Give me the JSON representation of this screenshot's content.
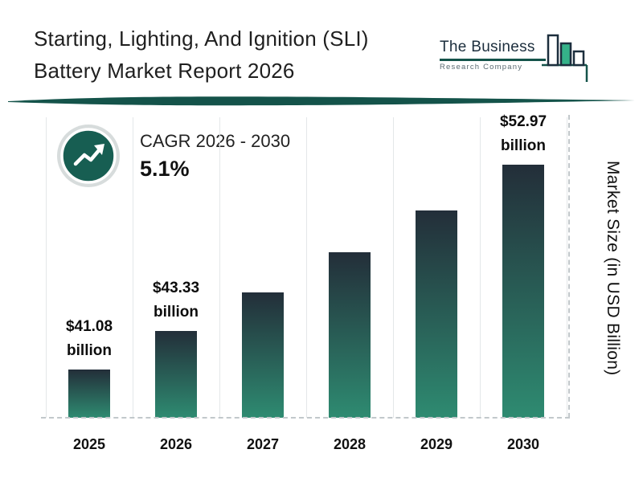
{
  "header": {
    "title_line1": "Starting, Lighting, And Ignition (SLI)",
    "title_line2": "Battery Market Report 2026",
    "logo": {
      "line1": "The Business",
      "line2": "Research Company"
    }
  },
  "cagr": {
    "label": "CAGR 2026 - 2030",
    "value": "5.1%"
  },
  "chart_data": {
    "type": "bar",
    "title": "Starting, Lighting, And Ignition (SLI) Battery Market Report 2026",
    "categories": [
      "2025",
      "2026",
      "2027",
      "2028",
      "2029",
      "2030"
    ],
    "values": [
      41.08,
      43.33,
      45.54,
      47.87,
      50.31,
      52.97
    ],
    "value_labels": [
      "$41.08 billion",
      "$43.33 billion",
      null,
      null,
      null,
      "$52.97 billion"
    ],
    "xlabel": "",
    "ylabel": "Market Size (in USD Billion)",
    "units": "USD Billion",
    "grid": "vertical-light",
    "axis_note": "bar baseline visually truncated (values estimated for unlabeled bars at 5.1% CAGR)",
    "bar_gradient_top": "#232e39",
    "bar_gradient_bottom": "#2e8b71",
    "annotations": [
      "CAGR 2026 - 2030: 5.1%"
    ]
  },
  "colors": {
    "accent_teal": "#14534a",
    "logo_green": "#35b289",
    "dashed_line": "#c2c8cb"
  }
}
